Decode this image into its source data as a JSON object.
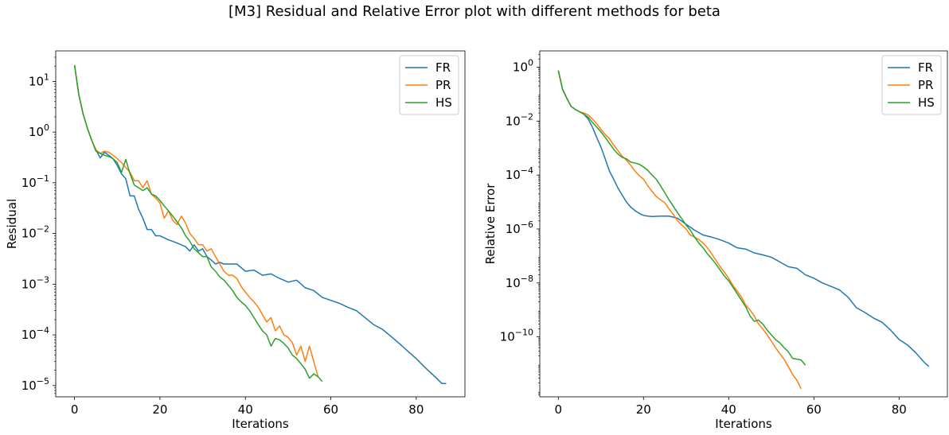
{
  "figure": {
    "suptitle": "[M3] Residual and Relative Error plot with different methods for beta"
  },
  "colors": {
    "FR": "#1f77b4",
    "PR": "#ff7f0e",
    "HS": "#2ca02c"
  },
  "chart_data": [
    {
      "type": "line",
      "title": "",
      "xlabel": "Iterations",
      "ylabel": "Residual",
      "yscale": "log",
      "xlim": [
        -4.4,
        91.4
      ],
      "ylim": [
        6e-06,
        40
      ],
      "xticks": [
        0,
        20,
        40,
        60,
        80
      ],
      "yticks": [
        {
          "value": 1e-05,
          "base": "10",
          "exp": "−5"
        },
        {
          "value": 0.0001,
          "base": "10",
          "exp": "−4"
        },
        {
          "value": 0.001,
          "base": "10",
          "exp": "−3"
        },
        {
          "value": 0.01,
          "base": "10",
          "exp": "−2"
        },
        {
          "value": 0.1,
          "base": "10",
          "exp": "−1"
        },
        {
          "value": 1,
          "base": "10",
          "exp": "0"
        },
        {
          "value": 10,
          "base": "10",
          "exp": "1"
        }
      ],
      "legend": "top-right",
      "grid": false,
      "series": [
        {
          "name": "FR",
          "color": "#1f77b4",
          "x": [
            0,
            1,
            2,
            3,
            4,
            5,
            6,
            7,
            8,
            9,
            10,
            11,
            12,
            13,
            14,
            15,
            16,
            17,
            18,
            19,
            20,
            22,
            24,
            26,
            27,
            28,
            29,
            30,
            31,
            32,
            33,
            34,
            35,
            36,
            38,
            40,
            42,
            44,
            46,
            48,
            50,
            52,
            54,
            56,
            58,
            60,
            62,
            64,
            66,
            68,
            70,
            72,
            74,
            76,
            78,
            80,
            82,
            84,
            86,
            87
          ],
          "y": [
            21,
            5.5,
            2.3,
            1.2,
            0.7,
            0.45,
            0.31,
            0.4,
            0.35,
            0.3,
            0.22,
            0.15,
            0.12,
            0.055,
            0.055,
            0.03,
            0.02,
            0.012,
            0.012,
            0.009,
            0.009,
            0.0075,
            0.0065,
            0.0055,
            0.0045,
            0.006,
            0.0045,
            0.005,
            0.0035,
            0.003,
            0.0025,
            0.0027,
            0.0025,
            0.0025,
            0.0025,
            0.0018,
            0.0019,
            0.0015,
            0.0016,
            0.0013,
            0.0011,
            0.0012,
            0.00085,
            0.00075,
            0.00055,
            0.00048,
            0.00042,
            0.00035,
            0.0003,
            0.00022,
            0.00016,
            0.00013,
            9.5e-05,
            6.8e-05,
            4.8e-05,
            3.4e-05,
            2.3e-05,
            1.6e-05,
            1.1e-05,
            1.1e-05
          ]
        },
        {
          "name": "PR",
          "color": "#ff7f0e",
          "x": [
            0,
            1,
            2,
            3,
            4,
            5,
            6,
            7,
            8,
            9,
            10,
            11,
            12,
            13,
            14,
            15,
            16,
            17,
            18,
            19,
            20,
            21,
            22,
            23,
            24,
            25,
            26,
            27,
            28,
            29,
            30,
            31,
            32,
            33,
            34,
            35,
            36,
            37,
            38,
            39,
            40,
            41,
            42,
            43,
            44,
            45,
            46,
            47,
            48,
            49,
            50,
            51,
            52,
            53,
            54,
            55,
            56,
            57
          ],
          "y": [
            21,
            5.5,
            2.3,
            1.2,
            0.7,
            0.45,
            0.38,
            0.42,
            0.4,
            0.35,
            0.3,
            0.25,
            0.2,
            0.16,
            0.11,
            0.11,
            0.08,
            0.11,
            0.06,
            0.05,
            0.04,
            0.02,
            0.028,
            0.018,
            0.015,
            0.022,
            0.016,
            0.01,
            0.008,
            0.006,
            0.006,
            0.0045,
            0.005,
            0.0035,
            0.0025,
            0.0018,
            0.0015,
            0.0015,
            0.0013,
            0.0009,
            0.0007,
            0.00055,
            0.00045,
            0.00035,
            0.00025,
            0.00018,
            0.00022,
            0.00012,
            0.00015,
            0.0001,
            9e-05,
            7e-05,
            4e-05,
            6e-05,
            3e-05,
            6e-05,
            3e-05,
            1.5e-05
          ]
        },
        {
          "name": "HS",
          "color": "#2ca02c",
          "x": [
            0,
            1,
            2,
            3,
            4,
            5,
            6,
            7,
            8,
            9,
            10,
            11,
            12,
            13,
            14,
            15,
            16,
            17,
            18,
            19,
            20,
            21,
            22,
            23,
            24,
            25,
            26,
            27,
            28,
            29,
            30,
            31,
            32,
            33,
            34,
            35,
            36,
            37,
            38,
            39,
            40,
            41,
            42,
            43,
            44,
            45,
            46,
            47,
            48,
            49,
            50,
            51,
            52,
            53,
            54,
            55,
            56,
            57,
            58
          ],
          "y": [
            21,
            5.5,
            2.3,
            1.2,
            0.7,
            0.42,
            0.38,
            0.35,
            0.33,
            0.3,
            0.25,
            0.16,
            0.29,
            0.15,
            0.09,
            0.08,
            0.07,
            0.08,
            0.06,
            0.055,
            0.045,
            0.035,
            0.028,
            0.022,
            0.017,
            0.013,
            0.009,
            0.007,
            0.005,
            0.0042,
            0.0035,
            0.0035,
            0.0022,
            0.0018,
            0.0014,
            0.0012,
            0.00095,
            0.00075,
            0.00055,
            0.00045,
            0.00038,
            0.0003,
            0.00022,
            0.00016,
            0.00012,
            0.0001,
            6e-05,
            8.5e-05,
            8e-05,
            6.8e-05,
            5.5e-05,
            4e-05,
            3.4e-05,
            2.7e-05,
            2.1e-05,
            1.4e-05,
            1.7e-05,
            1.5e-05,
            1.2e-05
          ]
        }
      ]
    },
    {
      "type": "line",
      "title": "",
      "xlabel": "Iterations",
      "ylabel": "Relative Error",
      "yscale": "log",
      "xlim": [
        -4.35,
        91.35
      ],
      "ylim": [
        6e-13,
        4
      ],
      "xticks": [
        0,
        20,
        40,
        60,
        80
      ],
      "yticks": [
        {
          "value": 1e-10,
          "base": "10",
          "exp": "−10"
        },
        {
          "value": 1e-08,
          "base": "10",
          "exp": "−8"
        },
        {
          "value": 1e-06,
          "base": "10",
          "exp": "−6"
        },
        {
          "value": 0.0001,
          "base": "10",
          "exp": "−4"
        },
        {
          "value": 0.01,
          "base": "10",
          "exp": "−2"
        },
        {
          "value": 1,
          "base": "10",
          "exp": "0"
        }
      ],
      "legend": "top-right",
      "grid": false,
      "series": [
        {
          "name": "FR",
          "color": "#1f77b4",
          "x": [
            0,
            1,
            2,
            3,
            4,
            5,
            6,
            7,
            8,
            9,
            10,
            11,
            12,
            13,
            14,
            15,
            16,
            17,
            18,
            19,
            20,
            21,
            22,
            24,
            26,
            28,
            30,
            32,
            34,
            36,
            38,
            40,
            42,
            44,
            46,
            48,
            50,
            52,
            54,
            56,
            58,
            60,
            62,
            64,
            66,
            68,
            70,
            72,
            74,
            76,
            78,
            80,
            82,
            84,
            86,
            87
          ],
          "y": [
            0.75,
            0.15,
            0.07,
            0.035,
            0.027,
            0.022,
            0.018,
            0.012,
            0.006,
            0.0025,
            0.0011,
            0.0004,
            0.00014,
            7e-05,
            3.3e-05,
            1.8e-05,
            1e-05,
            6.5e-06,
            4.8e-06,
            3.8e-06,
            3.2e-06,
            3e-06,
            2.9e-06,
            3e-06,
            3e-06,
            2.5e-06,
            1.5e-06,
            9e-07,
            6e-07,
            5e-07,
            4e-07,
            3e-07,
            2e-07,
            1.8e-07,
            1.3e-07,
            1.1e-07,
            9e-08,
            6e-08,
            4e-08,
            3.5e-08,
            2e-08,
            1.5e-08,
            1e-08,
            7.5e-09,
            5.5e-09,
            3e-09,
            1.2e-09,
            8e-10,
            5e-10,
            3.5e-10,
            1.8e-10,
            8e-11,
            5e-11,
            2.5e-11,
            1.1e-11,
            8e-12
          ]
        },
        {
          "name": "PR",
          "color": "#ff7f0e",
          "x": [
            0,
            1,
            2,
            3,
            4,
            5,
            6,
            7,
            8,
            9,
            10,
            11,
            12,
            13,
            14,
            15,
            16,
            17,
            18,
            19,
            20,
            21,
            22,
            23,
            24,
            25,
            26,
            27,
            28,
            29,
            30,
            31,
            32,
            33,
            34,
            35,
            36,
            37,
            38,
            39,
            40,
            41,
            42,
            43,
            44,
            45,
            46,
            47,
            48,
            49,
            50,
            51,
            52,
            53,
            54,
            55,
            56,
            57
          ],
          "y": [
            0.75,
            0.15,
            0.07,
            0.035,
            0.027,
            0.022,
            0.02,
            0.017,
            0.012,
            0.008,
            0.005,
            0.0032,
            0.0022,
            0.0013,
            0.0008,
            0.0005,
            0.00035,
            0.00023,
            0.00014,
            9.5e-05,
            7e-05,
            4e-05,
            2.5e-05,
            1.6e-05,
            1.2e-05,
            9.5e-06,
            5.5e-06,
            3.5e-06,
            2e-06,
            1.4e-06,
            1e-06,
            6e-07,
            5e-07,
            4e-07,
            3e-07,
            2e-07,
            1.2e-07,
            7e-08,
            4e-08,
            2.5e-08,
            1.5e-08,
            8e-09,
            5e-09,
            3e-09,
            1.5e-09,
            1e-09,
            6e-10,
            3e-10,
            2e-10,
            1.2e-10,
            7e-11,
            4e-11,
            2.4e-11,
            1.5e-11,
            8e-12,
            4e-12,
            2.5e-12,
            1.2e-12
          ]
        },
        {
          "name": "HS",
          "color": "#2ca02c",
          "x": [
            0,
            1,
            2,
            3,
            4,
            5,
            6,
            7,
            8,
            9,
            10,
            11,
            12,
            13,
            14,
            15,
            16,
            17,
            18,
            19,
            20,
            21,
            22,
            23,
            24,
            25,
            26,
            27,
            28,
            29,
            30,
            31,
            32,
            33,
            34,
            35,
            36,
            37,
            38,
            39,
            40,
            41,
            42,
            43,
            44,
            45,
            46,
            47,
            48,
            49,
            50,
            51,
            52,
            53,
            54,
            55,
            56,
            57,
            58
          ],
          "y": [
            0.75,
            0.15,
            0.07,
            0.035,
            0.027,
            0.022,
            0.018,
            0.014,
            0.009,
            0.006,
            0.004,
            0.0025,
            0.0015,
            0.0009,
            0.0006,
            0.00045,
            0.0004,
            0.0003,
            0.00028,
            0.00025,
            0.0002,
            0.00015,
            0.0001,
            7e-05,
            4e-05,
            2.2e-05,
            1.2e-05,
            7e-06,
            4e-06,
            2.4e-06,
            1.4e-06,
            9e-07,
            5e-07,
            3e-07,
            2e-07,
            1.2e-07,
            8e-08,
            5e-08,
            3e-08,
            1.8e-08,
            1.2e-08,
            7e-09,
            4e-09,
            2.3e-09,
            1.3e-09,
            6e-10,
            3.8e-10,
            4.2e-10,
            3e-10,
            1.8e-10,
            1.2e-10,
            8e-11,
            6e-11,
            4e-11,
            2.8e-11,
            1.6e-11,
            1.5e-11,
            1.4e-11,
            9e-12
          ]
        }
      ]
    }
  ]
}
